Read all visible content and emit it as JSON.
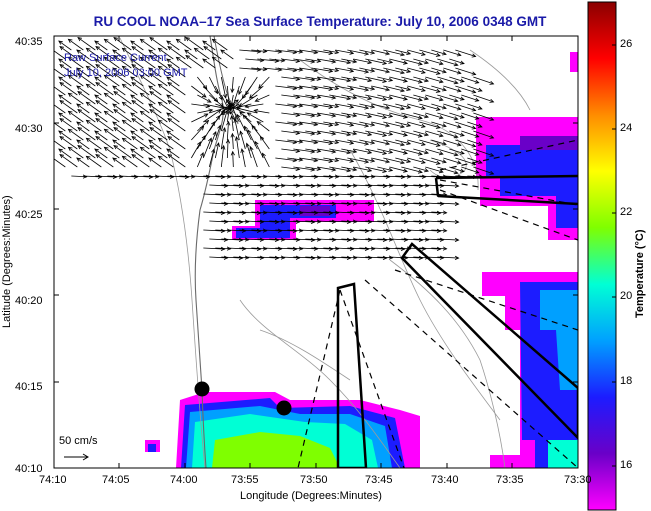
{
  "title": "RU COOL  NOAA–17  Sea Surface Temperature:  July 10, 2006 0348 GMT",
  "legend": {
    "line1": "Raw Surface Current",
    "line2": "July 10, 2006 03:00 GMT"
  },
  "axes": {
    "xlabel": "Longitude (Degrees:Minutes)",
    "ylabel": "Latitude (Degrees:Minutes)",
    "x_ticks": [
      "74:10",
      "74:05",
      "74:00",
      "73:55",
      "73:50",
      "73:45",
      "73:40",
      "73:35",
      "73:30"
    ],
    "y_ticks": [
      "40:35",
      "40:30",
      "40:25",
      "40:20",
      "40:15",
      "40:10"
    ]
  },
  "colorbar": {
    "label": "Temperature (°C)",
    "ticks": [
      "26",
      "24",
      "22",
      "20",
      "18",
      "16"
    ],
    "range": [
      15,
      27
    ],
    "colors": [
      "#8b0000",
      "#ff0000",
      "#ff8c00",
      "#ffff00",
      "#7fff00",
      "#00ffd5",
      "#00a0ff",
      "#1c1cff",
      "#6a00c8",
      "#ff00ff"
    ]
  },
  "scale": {
    "label": "50 cm/s"
  }
}
